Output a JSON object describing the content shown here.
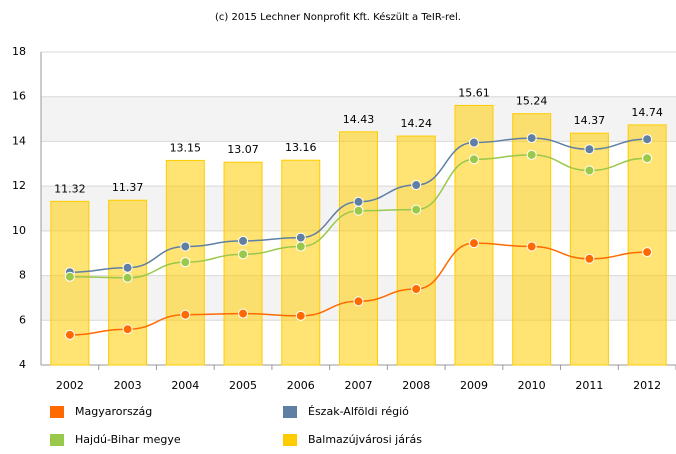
{
  "chart_data": {
    "type": "combo",
    "title": "(c) 2015 Lechner Nonprofit Kft. Készült a TeIR-rel.",
    "categories": [
      "2002",
      "2003",
      "2004",
      "2005",
      "2006",
      "2007",
      "2008",
      "2009",
      "2010",
      "2011",
      "2012"
    ],
    "series": [
      {
        "name": "Magyarország",
        "type": "line",
        "color": "#ff6a00",
        "values": [
          5.35,
          5.6,
          6.25,
          6.3,
          6.2,
          6.85,
          7.4,
          9.45,
          9.3,
          8.75,
          9.05
        ]
      },
      {
        "name": "Észak-Alföldi régió",
        "type": "line",
        "color": "#5f7fa3",
        "values": [
          8.15,
          8.35,
          9.3,
          9.55,
          9.7,
          11.3,
          12.05,
          13.95,
          14.15,
          13.65,
          14.1
        ]
      },
      {
        "name": "Hajdú-Bihar megye",
        "type": "line",
        "color": "#99c84a",
        "values": [
          7.95,
          7.9,
          8.6,
          8.95,
          9.3,
          10.9,
          10.95,
          13.2,
          13.4,
          12.7,
          13.25
        ]
      },
      {
        "name": "Balmazújvárosi járás",
        "type": "bar",
        "color": "#ffcc00",
        "values": [
          11.32,
          11.37,
          13.15,
          13.07,
          13.16,
          14.43,
          14.24,
          15.61,
          15.24,
          14.37,
          14.74
        ]
      }
    ],
    "ylim": [
      4,
      18
    ],
    "yticks": [
      4,
      6,
      8,
      10,
      12,
      14,
      16,
      18
    ],
    "grid": true
  }
}
